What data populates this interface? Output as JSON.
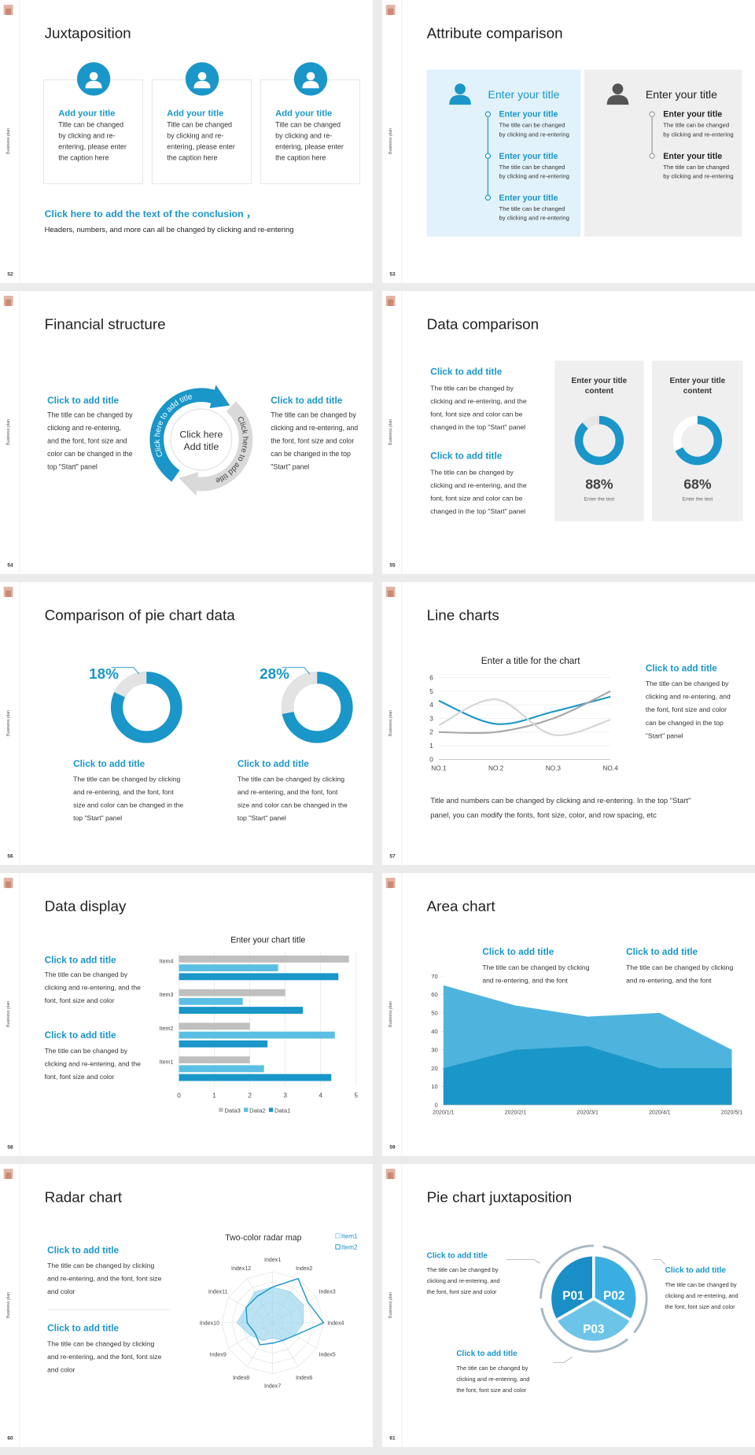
{
  "slides": [
    {
      "number": "52",
      "side_label": "Business plan",
      "title": "Juxtaposition",
      "cards": [
        {
          "heading": "Add your title",
          "body": [
            "Title can be changed",
            "by clicking and re-",
            "entering, please enter",
            "the caption here"
          ]
        },
        {
          "heading": "Add your title",
          "body": [
            "Title can be changed",
            "by clicking and re-",
            "entering, please enter",
            "the caption here"
          ]
        },
        {
          "heading": "Add your title",
          "body": [
            "Title can be changed",
            "by clicking and re-",
            "entering, please enter",
            "the caption here"
          ]
        }
      ],
      "conclusion": {
        "heading": "Click here to add the text of the conclusion ，",
        "text": "Headers, numbers, and more can all be changed by clicking and re-entering"
      }
    },
    {
      "number": "53",
      "side_label": "Business plan",
      "title": "Attribute comparison",
      "panels": [
        {
          "heading": "Enter your title",
          "items": [
            {
              "heading": "Enter your title",
              "body": [
                "The title can be changed",
                "by clicking and re-entering"
              ]
            },
            {
              "heading": "Enter your title",
              "body": [
                "The title can be changed",
                "by clicking and re-entering"
              ]
            },
            {
              "heading": "Enter your title",
              "body": [
                "The title can be changed",
                "by clicking and re-entering"
              ]
            }
          ]
        },
        {
          "heading": "Enter your title",
          "items": [
            {
              "heading": "Enter your title",
              "body": [
                "The title can be changed",
                "by clicking and re-entering"
              ]
            },
            {
              "heading": "Enter your title",
              "body": [
                "The title can be changed",
                "by clicking and re-entering"
              ]
            }
          ]
        }
      ]
    },
    {
      "number": "54",
      "side_label": "Business plan",
      "title": "Financial structure",
      "blocks": [
        {
          "heading": "Click to add title",
          "body": [
            "The title can be changed by",
            "clicking and re-entering,",
            "and the font, font size and",
            "color can be changed in the",
            "top \"Start\" panel"
          ]
        },
        {
          "heading": "Click to add title",
          "body": [
            "The title can be changed by",
            "clicking and re-entering, and",
            "the font, font size and color",
            "can be changed in the top",
            "\"Start\" panel"
          ]
        }
      ],
      "ring_labels": [
        "Click here to add title",
        "Click here to add title"
      ],
      "center": [
        "Click here",
        "Add title"
      ]
    },
    {
      "number": "55",
      "side_label": "Business plan",
      "title": "Data comparison",
      "blocks": [
        {
          "heading": "Click to add title",
          "body": [
            "The title can be changed by",
            "clicking and re-entering, and the",
            "font, font size and color can be",
            "changed in the top \"Start\" panel"
          ]
        },
        {
          "heading": "Click to add title",
          "body": [
            "The title can be changed by",
            "clicking and re-entering, and the",
            "font, font size and color can be",
            "changed in the top \"Start\" panel"
          ]
        }
      ]
    },
    {
      "number": "56",
      "side_label": "Business plan",
      "title": "Comparison of pie chart data",
      "blocks": [
        {
          "heading": "Click to add title",
          "body": [
            "The title can be changed by clicking",
            "and re-entering, and the font, font",
            "size and color can be changed in the",
            "top \"Start\" panel"
          ]
        },
        {
          "heading": "Click to add title",
          "body": [
            "The title can be changed by clicking",
            "and re-entering, and the font, font",
            "size and color can be changed in the",
            "top \"Start\" panel"
          ]
        }
      ]
    },
    {
      "number": "57",
      "side_label": "Business plan",
      "title": "Line charts",
      "blocks": [
        {
          "heading": "Click to add title",
          "body": [
            "The title can be changed by",
            "clicking and re-entering, and",
            "the font, font size and color",
            "can be changed in the top",
            "\"Start\" panel"
          ]
        }
      ],
      "footnote": [
        "Title and numbers can be changed by clicking and re-entering. In the top \"Start\"",
        "panel, you can modify the fonts, font size, color, and row spacing, etc"
      ]
    },
    {
      "number": "58",
      "side_label": "Business plan",
      "title": "Data display",
      "blocks": [
        {
          "heading": "Click to add title",
          "body": [
            "The title can be changed by",
            "clicking and re-entering, and the",
            "font, font size and color"
          ]
        },
        {
          "heading": "Click to add title",
          "body": [
            "The title can be changed by",
            "clicking and re-entering, and the",
            "font, font size and color"
          ]
        }
      ]
    },
    {
      "number": "59",
      "side_label": "Business plan",
      "title": "Area chart",
      "blocks": [
        {
          "heading": "Click to add title",
          "body": [
            "The title can be changed by clicking",
            "and re-entering, and the font"
          ]
        },
        {
          "heading": "Click to add title",
          "body": [
            "The title can be changed by clicking",
            "and re-entering, and the font"
          ]
        }
      ]
    },
    {
      "number": "60",
      "side_label": "Business plan",
      "title": "Radar chart",
      "blocks": [
        {
          "heading": "Click to add title",
          "body": [
            "The title can be changed by clicking",
            "and re-entering, and the font, font size",
            "and color"
          ]
        },
        {
          "heading": "Click to add title",
          "body": [
            "The title can be changed by clicking",
            "and re-entering, and the font, font size",
            "and color"
          ]
        }
      ]
    },
    {
      "number": "61",
      "side_label": "Business plan",
      "title": "Pie chart juxtaposition",
      "blocks": [
        {
          "heading": "Click to add title",
          "body": [
            "The title can be changed by",
            "clicking and re-entering, and",
            "the font, font size and color"
          ]
        },
        {
          "heading": "Click to add title",
          "body": [
            "The title can be changed by",
            "clicking and re-entering, and",
            "the font, font size and color"
          ]
        },
        {
          "heading": "Click to add title",
          "body": [
            "The title can be changed by",
            "clicking and re-entering, and",
            "the font, font size and color"
          ]
        }
      ],
      "segments": [
        "P01",
        "P02",
        "P03"
      ]
    }
  ],
  "chart_data": [
    {
      "type": "donut",
      "title_lines": [
        "Enter your title",
        "content"
      ],
      "values": [
        88
      ],
      "value_labels": [
        "88%"
      ],
      "caption": "Enter the text",
      "color": "#1a96c8",
      "track_color": "#e6e6e6",
      "clockwise": true
    },
    {
      "type": "donut",
      "title_lines": [
        "Enter your title",
        "content"
      ],
      "values": [
        68
      ],
      "value_labels": [
        "68%"
      ],
      "caption": "Enter the text",
      "color": "#1a96c8",
      "track_color": "#ffffff",
      "clockwise": true
    },
    {
      "type": "donut",
      "values": [
        18
      ],
      "value_labels": [
        "18%"
      ],
      "color": "#e3e3e3",
      "track_color": "#1a96c8",
      "clockwise": false
    },
    {
      "type": "donut",
      "values": [
        28
      ],
      "value_labels": [
        "28%"
      ],
      "color": "#e3e3e3",
      "track_color": "#1a96c8",
      "clockwise": false
    },
    {
      "type": "line",
      "title": "Enter a title for the chart",
      "categories": [
        "NO.1",
        "NO.2",
        "NO.3",
        "NO.4"
      ],
      "series": [
        {
          "color": "#1a96c8",
          "values": [
            4.3,
            2.6,
            3.5,
            4.6
          ]
        },
        {
          "color": "#a6a6a6",
          "values": [
            2.0,
            2.0,
            3.0,
            5.0
          ]
        },
        {
          "color": "#d4d4d4",
          "values": [
            2.5,
            4.4,
            1.8,
            2.9
          ]
        }
      ],
      "ylim": [
        0,
        6
      ],
      "yticks": [
        0,
        1,
        2,
        3,
        4,
        5,
        6
      ],
      "grid": true,
      "smooth": true
    },
    {
      "type": "barh",
      "title": "Enter your chart title",
      "categories": [
        "Item1",
        "Item2",
        "Item3",
        "Item4"
      ],
      "series": [
        {
          "name": "Data3",
          "color": "#bfbfbf",
          "values": [
            2.0,
            2.0,
            3.0,
            4.8
          ]
        },
        {
          "name": "Data2",
          "color": "#5bbfe3",
          "values": [
            2.4,
            4.4,
            1.8,
            2.8
          ]
        },
        {
          "name": "Data1",
          "color": "#1a96c8",
          "values": [
            4.3,
            2.5,
            3.5,
            4.5
          ]
        }
      ],
      "xlim": [
        0,
        5
      ],
      "xticks": [
        0,
        1,
        2,
        3,
        4,
        5
      ],
      "grid": true,
      "legend": "bottom"
    },
    {
      "type": "area",
      "x": [
        "2020/1/1",
        "2020/2/1",
        "2020/3/1",
        "2020/4/1",
        "2020/5/1"
      ],
      "series": [
        {
          "color": "#4fb4dd",
          "values": [
            65,
            54,
            48,
            50,
            30
          ]
        },
        {
          "color": "#1a96c8",
          "values": [
            20,
            30,
            32,
            20,
            20
          ]
        }
      ],
      "ylim": [
        0,
        70
      ],
      "yticks": [
        0,
        10,
        20,
        30,
        40,
        50,
        60,
        70
      ]
    },
    {
      "type": "radar",
      "title": "Two-color radar map",
      "categories": [
        "Index1",
        "Index2",
        "Index3",
        "Index4",
        "Index5",
        "Index6",
        "Index7",
        "Index8",
        "Index9",
        "Index10",
        "Index11",
        "Index12"
      ],
      "series": [
        {
          "name": "Item1",
          "color": "#8fd0ec",
          "values": [
            7,
            7,
            7,
            6,
            5,
            4,
            3,
            4,
            5,
            7,
            6,
            7
          ]
        },
        {
          "name": "Item2",
          "color": "#1a96c8",
          "values": [
            7,
            10,
            8,
            10,
            5,
            4,
            4,
            5,
            4,
            5,
            6,
            6
          ]
        }
      ],
      "rlim": [
        0,
        10
      ],
      "legend": "top-right"
    }
  ]
}
